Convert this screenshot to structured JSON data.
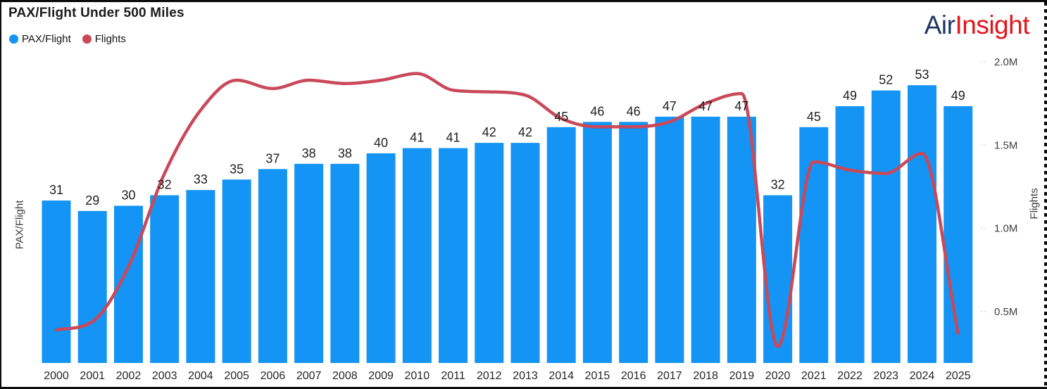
{
  "header": {
    "title": "PAX/Flight Under 500 Miles",
    "legend": [
      {
        "label": "PAX/Flight",
        "color": "#1494F4"
      },
      {
        "label": "Flights",
        "color": "#C9495A"
      }
    ],
    "brand": {
      "part1": "Air",
      "part2": "Insight",
      "part1_color": "#1F3864",
      "part2_color": "#E4151B"
    }
  },
  "chart_data": {
    "type": "bar",
    "subtype": "combo-bar-line",
    "title": "PAX/Flight Under 500 Miles",
    "categories": [
      "2000",
      "2001",
      "2002",
      "2003",
      "2004",
      "2005",
      "2006",
      "2007",
      "2008",
      "2009",
      "2010",
      "2011",
      "2012",
      "2013",
      "2014",
      "2015",
      "2016",
      "2017",
      "2018",
      "2019",
      "2020",
      "2021",
      "2022",
      "2023",
      "2024",
      "2025"
    ],
    "series": [
      {
        "name": "PAX/Flight",
        "type": "bar",
        "axis": "left",
        "color": "#1494F4",
        "values": [
          31,
          29,
          30,
          32,
          33,
          35,
          37,
          38,
          38,
          40,
          41,
          41,
          42,
          42,
          45,
          46,
          46,
          47,
          47,
          47,
          32,
          45,
          49,
          52,
          53,
          49
        ]
      },
      {
        "name": "Flights",
        "type": "line",
        "axis": "right",
        "color": "#C9495A",
        "unit": "M",
        "values": [
          0.39,
          0.44,
          0.77,
          1.33,
          1.71,
          1.89,
          1.84,
          1.89,
          1.87,
          1.89,
          1.93,
          1.83,
          1.82,
          1.8,
          1.66,
          1.61,
          1.61,
          1.64,
          1.75,
          1.81,
          0.29,
          1.4,
          1.35,
          1.33,
          1.45,
          0.37
        ]
      }
    ],
    "left_axis": {
      "label": "PAX/Flight",
      "tick_labels_visible": false
    },
    "right_axis": {
      "label": "Flights",
      "ticks": [
        {
          "label": "0.5M",
          "value": 0.5
        },
        {
          "label": "1.0M",
          "value": 1.0
        },
        {
          "label": "1.5M",
          "value": 1.5
        },
        {
          "label": "2.0M",
          "value": 2.0
        }
      ]
    },
    "grid": false,
    "legend_position": "top-left",
    "data_label_color": "#202020",
    "category_label_color": "#252525",
    "tick_label_color": "#404040"
  }
}
